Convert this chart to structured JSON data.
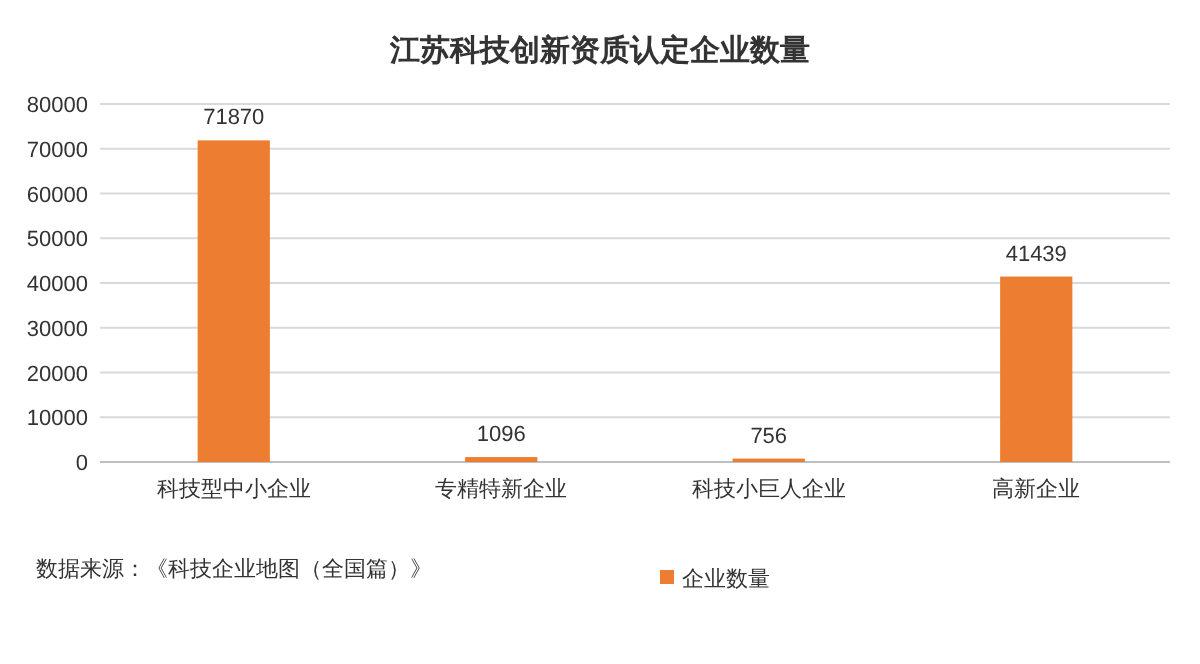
{
  "chart_data": {
    "type": "bar",
    "title": "江苏科技创新资质认定企业数量",
    "categories": [
      "科技型中小企业",
      "专精特新企业",
      "科技小巨人企业",
      "高新企业"
    ],
    "series": [
      {
        "name": "企业数量",
        "color": "#ed7d31",
        "values": [
          71870,
          1096,
          756,
          41439
        ]
      }
    ],
    "ylim": [
      0,
      80000
    ],
    "yticks": [
      0,
      10000,
      20000,
      30000,
      40000,
      50000,
      60000,
      70000,
      80000
    ],
    "grid": "y",
    "legend": "bottom",
    "data_labels": true,
    "annotations": [
      "数据来源：《科技企业地图（全国篇）》"
    ]
  }
}
